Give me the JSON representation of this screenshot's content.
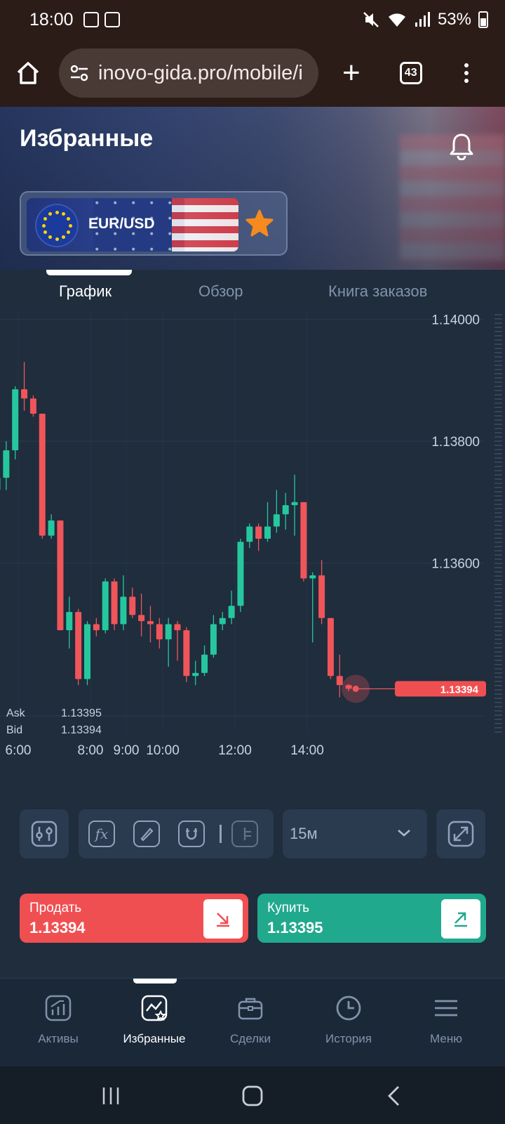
{
  "status_bar": {
    "time": "18:00",
    "battery": "53%"
  },
  "browser": {
    "url": "inovo-gida.pro/mobile/i",
    "tab_count": "43"
  },
  "header": {
    "title": "Избранные",
    "pair": "EUR/USD"
  },
  "tabs": [
    {
      "label": "График",
      "active": true
    },
    {
      "label": "Обзор",
      "active": false
    },
    {
      "label": "Книга заказов",
      "active": false
    }
  ],
  "quotes": {
    "ask_label": "Ask",
    "ask": "1.13395",
    "bid_label": "Bid",
    "bid": "1.13394"
  },
  "toolbar": {
    "timeframe": "15м"
  },
  "trade": {
    "sell_label": "Продать",
    "sell_price": "1.13394",
    "buy_label": "Купить",
    "buy_price": "1.13395"
  },
  "bottom_nav": [
    {
      "label": "Активы",
      "icon": "assets-chart-icon"
    },
    {
      "label": "Избранные",
      "icon": "favorites-chart-icon",
      "active": true
    },
    {
      "label": "Сделки",
      "icon": "briefcase-icon"
    },
    {
      "label": "История",
      "icon": "clock-icon"
    },
    {
      "label": "Меню",
      "icon": "hamburger-icon"
    }
  ],
  "colors": {
    "up": "#26c79e",
    "down": "#f0555a",
    "background": "#1f2d3d",
    "price_tag": "#f04f52"
  },
  "chart_data": {
    "type": "candlestick",
    "y_ticks": [
      "1.14000",
      "1.13800",
      "1.13600"
    ],
    "x_ticks": [
      "6:00",
      "8:00",
      "9:00",
      "10:00",
      "12:00",
      "14:00"
    ],
    "current_price_label": "1.13394",
    "current_price": 1.13394,
    "ylim": [
      1.1336,
      1.14005
    ],
    "interval": "15m",
    "candles": [
      {
        "o": 1.1372,
        "h": 1.1375,
        "l": 1.1368,
        "c": 1.1374
      },
      {
        "o": 1.1374,
        "h": 1.138,
        "l": 1.1372,
        "c": 1.13785
      },
      {
        "o": 1.13785,
        "h": 1.1389,
        "l": 1.1377,
        "c": 1.13885
      },
      {
        "o": 1.13885,
        "h": 1.1393,
        "l": 1.1385,
        "c": 1.1387
      },
      {
        "o": 1.1387,
        "h": 1.13875,
        "l": 1.1384,
        "c": 1.13845
      },
      {
        "o": 1.13845,
        "h": 1.13845,
        "l": 1.1364,
        "c": 1.13645
      },
      {
        "o": 1.13645,
        "h": 1.1368,
        "l": 1.1364,
        "c": 1.1367
      },
      {
        "o": 1.1367,
        "h": 1.1367,
        "l": 1.1349,
        "c": 1.1349
      },
      {
        "o": 1.1349,
        "h": 1.13545,
        "l": 1.1346,
        "c": 1.1352
      },
      {
        "o": 1.1352,
        "h": 1.13525,
        "l": 1.134,
        "c": 1.1341
      },
      {
        "o": 1.1341,
        "h": 1.13505,
        "l": 1.134,
        "c": 1.135
      },
      {
        "o": 1.135,
        "h": 1.1351,
        "l": 1.1348,
        "c": 1.1349
      },
      {
        "o": 1.1349,
        "h": 1.13575,
        "l": 1.13485,
        "c": 1.1357
      },
      {
        "o": 1.1357,
        "h": 1.13575,
        "l": 1.1349,
        "c": 1.135
      },
      {
        "o": 1.135,
        "h": 1.1358,
        "l": 1.1349,
        "c": 1.13545
      },
      {
        "o": 1.13545,
        "h": 1.1356,
        "l": 1.1351,
        "c": 1.13515
      },
      {
        "o": 1.13515,
        "h": 1.1355,
        "l": 1.1348,
        "c": 1.13505
      },
      {
        "o": 1.13505,
        "h": 1.1353,
        "l": 1.1347,
        "c": 1.135
      },
      {
        "o": 1.135,
        "h": 1.1351,
        "l": 1.1346,
        "c": 1.13475
      },
      {
        "o": 1.13475,
        "h": 1.1351,
        "l": 1.1343,
        "c": 1.135
      },
      {
        "o": 1.135,
        "h": 1.13505,
        "l": 1.1344,
        "c": 1.1349
      },
      {
        "o": 1.1349,
        "h": 1.13495,
        "l": 1.13405,
        "c": 1.13415
      },
      {
        "o": 1.13415,
        "h": 1.1344,
        "l": 1.134,
        "c": 1.1342
      },
      {
        "o": 1.1342,
        "h": 1.13465,
        "l": 1.13415,
        "c": 1.1345
      },
      {
        "o": 1.1345,
        "h": 1.13515,
        "l": 1.13445,
        "c": 1.135
      },
      {
        "o": 1.135,
        "h": 1.1352,
        "l": 1.1349,
        "c": 1.1351
      },
      {
        "o": 1.1351,
        "h": 1.13555,
        "l": 1.135,
        "c": 1.1353
      },
      {
        "o": 1.1353,
        "h": 1.1364,
        "l": 1.1352,
        "c": 1.13635
      },
      {
        "o": 1.13635,
        "h": 1.13665,
        "l": 1.13625,
        "c": 1.1366
      },
      {
        "o": 1.1366,
        "h": 1.13665,
        "l": 1.1362,
        "c": 1.1364
      },
      {
        "o": 1.1364,
        "h": 1.137,
        "l": 1.13635,
        "c": 1.1366
      },
      {
        "o": 1.1366,
        "h": 1.1372,
        "l": 1.1365,
        "c": 1.1368
      },
      {
        "o": 1.1368,
        "h": 1.13715,
        "l": 1.13655,
        "c": 1.13695
      },
      {
        "o": 1.13695,
        "h": 1.13745,
        "l": 1.13645,
        "c": 1.137
      },
      {
        "o": 1.137,
        "h": 1.137,
        "l": 1.1357,
        "c": 1.13575
      },
      {
        "o": 1.13575,
        "h": 1.13585,
        "l": 1.1347,
        "c": 1.1358
      },
      {
        "o": 1.1358,
        "h": 1.13605,
        "l": 1.135,
        "c": 1.1351
      },
      {
        "o": 1.1351,
        "h": 1.1351,
        "l": 1.1341,
        "c": 1.13415
      },
      {
        "o": 1.13415,
        "h": 1.1345,
        "l": 1.1338,
        "c": 1.134
      },
      {
        "o": 1.134,
        "h": 1.13402,
        "l": 1.1339,
        "c": 1.13394
      }
    ]
  }
}
